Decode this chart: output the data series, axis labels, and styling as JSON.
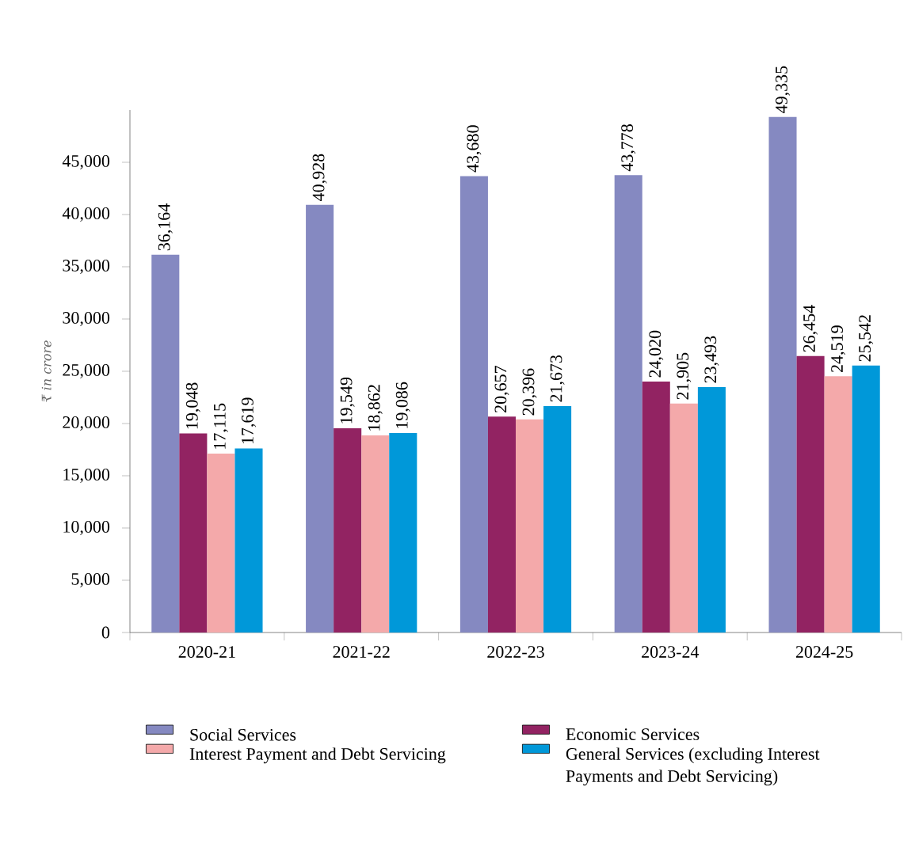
{
  "chart_data": {
    "type": "bar",
    "ylabel": "₹ in crore",
    "categories": [
      "2020-21",
      "2021-22",
      "2022-23",
      "2023-24",
      "2024-25"
    ],
    "series": [
      {
        "name": "Social Services",
        "color": "#8589c1",
        "values": [
          36164,
          40928,
          43680,
          43778,
          49335
        ],
        "value_labels": [
          "36,164",
          "40,928",
          "43,680",
          "43,778",
          "49,335"
        ]
      },
      {
        "name": "Economic Services",
        "color": "#922362",
        "values": [
          19048,
          19549,
          20657,
          24020,
          26454
        ],
        "value_labels": [
          "19,048",
          "19,549",
          "20,657",
          "24,020",
          "26,454"
        ]
      },
      {
        "name": "Interest Payment and Debt Servicing",
        "color": "#f4a9aa",
        "values": [
          17115,
          18862,
          20396,
          21905,
          24519
        ],
        "value_labels": [
          "17,115",
          "18,862",
          "20,396",
          "21,905",
          "24,519"
        ]
      },
      {
        "name": "General Services (excluding Interest Payments and Debt Servicing)",
        "color": "#0098d9",
        "values": [
          17619,
          19086,
          21673,
          23493,
          25542
        ],
        "value_labels": [
          "17,619",
          "19,086",
          "21,673",
          "23,493",
          "25,542"
        ]
      }
    ],
    "ylim": [
      0,
      50000
    ],
    "yticks": [
      0,
      {
        "value": 5000,
        "label": "5,000"
      },
      {
        "value": 10000,
        "label": "10,000"
      },
      {
        "value": 15000,
        "label": "15,000"
      },
      {
        "value": 20000,
        "label": "20,000"
      },
      {
        "value": 25000,
        "label": "25,000"
      },
      {
        "value": 30000,
        "label": "30,000"
      },
      {
        "value": 35000,
        "label": "35,000"
      },
      {
        "value": 40000,
        "label": "40,000"
      },
      {
        "value": 45000,
        "label": "45,000"
      }
    ],
    "grid": false,
    "legend": "bottom"
  }
}
